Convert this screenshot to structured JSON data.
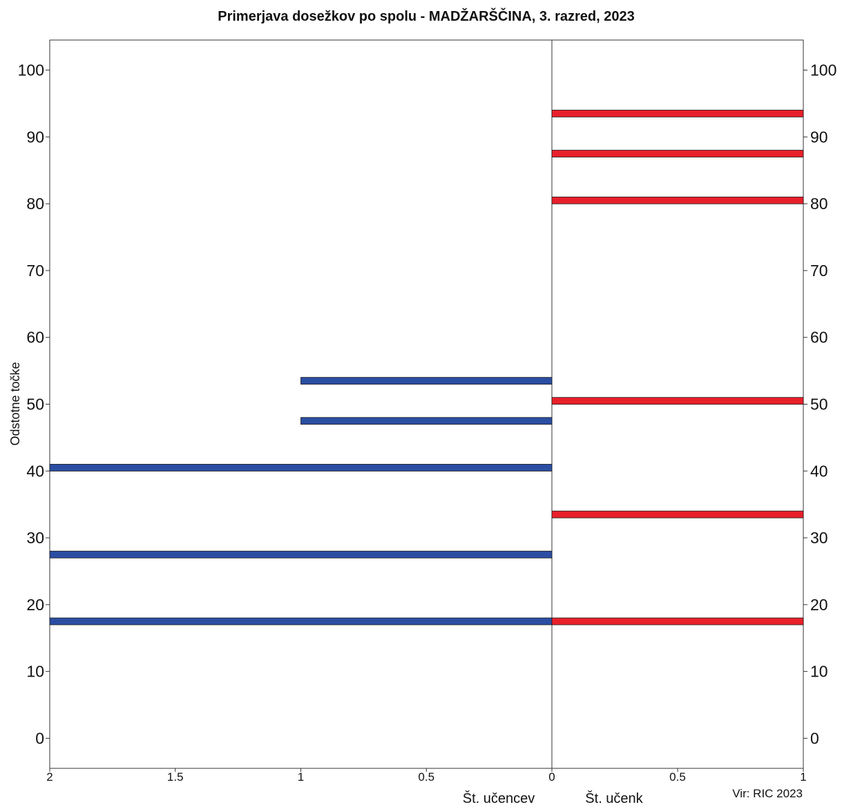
{
  "chart_data": {
    "type": "bar",
    "orientation": "horizontal-butterfly",
    "title": "Primerjava dosežkov po spolu - MADŽARŠČINA, 3. razred, 2023",
    "ylabel": "Odstotne točke",
    "left_xlabel": "Št. učencev",
    "right_xlabel": "Št. učenk",
    "source": "Vir: RIC 2023",
    "ylim": [
      -4.5,
      104.5
    ],
    "yticks": [
      "0",
      "10",
      "20",
      "30",
      "40",
      "50",
      "60",
      "70",
      "80",
      "90",
      "100"
    ],
    "left_xlim": [
      0,
      2
    ],
    "left_xticks": [
      "2",
      "1.5",
      "1",
      "0.5",
      "0"
    ],
    "right_xlim": [
      0,
      1
    ],
    "right_xticks": [
      "0",
      "0.5",
      "1"
    ],
    "grid": false,
    "series": [
      {
        "name": "Št. učencev",
        "side": "left",
        "color": "#2b4ea2",
        "points": [
          {
            "y": 17.5,
            "count": 2
          },
          {
            "y": 27.5,
            "count": 2
          },
          {
            "y": 40.5,
            "count": 2
          },
          {
            "y": 47.5,
            "count": 1
          },
          {
            "y": 53.5,
            "count": 1
          }
        ]
      },
      {
        "name": "Št. učenk",
        "side": "right",
        "color": "#e8202a",
        "points": [
          {
            "y": 17.5,
            "count": 1
          },
          {
            "y": 33.5,
            "count": 1
          },
          {
            "y": 50.5,
            "count": 1
          },
          {
            "y": 80.5,
            "count": 1
          },
          {
            "y": 87.5,
            "count": 1
          },
          {
            "y": 93.5,
            "count": 1
          }
        ]
      }
    ]
  }
}
